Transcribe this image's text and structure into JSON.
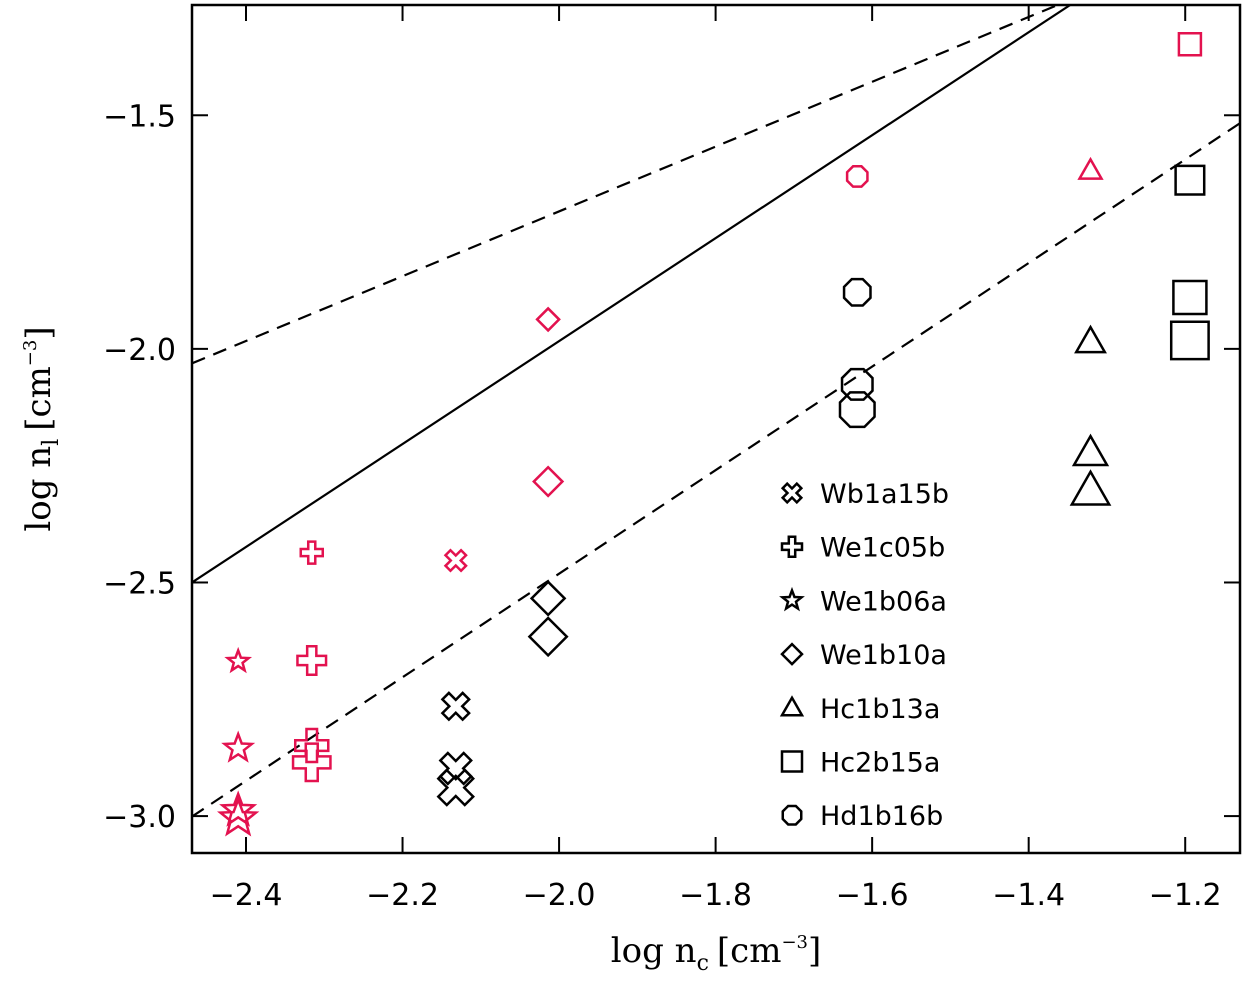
{
  "chart_data": {
    "type": "scatter",
    "x_label": {
      "text": "log n",
      "sub": "c",
      "unit": "[cm",
      "sup": "−3",
      "close": "]"
    },
    "y_label": {
      "text": "log n",
      "sub": "l",
      "unit": "[cm",
      "sup": "−3",
      "close": "]"
    },
    "xlim": [
      -2.469,
      -1.13
    ],
    "ylim": [
      -3.079,
      -1.264
    ],
    "xticks": [
      {
        "value": -2.4,
        "label": "−2.4"
      },
      {
        "value": -2.2,
        "label": "−2.2"
      },
      {
        "value": -2.0,
        "label": "−2.0"
      },
      {
        "value": -1.8,
        "label": "−1.8"
      },
      {
        "value": -1.6,
        "label": "−1.6"
      },
      {
        "value": -1.4,
        "label": "−1.4"
      },
      {
        "value": -1.2,
        "label": "−1.2"
      }
    ],
    "yticks": [
      {
        "value": -1.5,
        "label": "−1.5"
      },
      {
        "value": -2.0,
        "label": "−2.0"
      },
      {
        "value": -2.5,
        "label": "−2.5"
      },
      {
        "value": -3.0,
        "label": "−3.0"
      }
    ],
    "lines": [
      {
        "x": [
          -2.469,
          -1.347
        ],
        "y": [
          -2.5,
          -1.264
        ],
        "dashed": false
      },
      {
        "x": [
          -2.469,
          -1.363
        ],
        "y": [
          -2.031,
          -1.264
        ],
        "dashed": true
      },
      {
        "x": [
          -2.469,
          -1.13
        ],
        "y": [
          -3.001,
          -1.517
        ],
        "dashed": true
      }
    ],
    "series": [
      {
        "name": "Wb1a15b",
        "marker": "cross",
        "x": [
          -2.132,
          -2.132,
          -2.132,
          -2.132
        ],
        "y": [
          -2.453,
          -2.765,
          -2.898,
          -2.939
        ],
        "sizes": [
          1.0,
          1.3,
          1.5,
          1.7
        ],
        "colors": [
          "#e3124f",
          "#000000",
          "#000000",
          "#000000"
        ]
      },
      {
        "name": "We1c05b",
        "marker": "plus",
        "x": [
          -2.316,
          -2.316,
          -2.316,
          -2.316
        ],
        "y": [
          -2.436,
          -2.667,
          -2.849,
          -2.885
        ],
        "sizes": [
          1.0,
          1.3,
          1.5,
          1.7
        ],
        "colors": [
          "#e3124f",
          "#e3124f",
          "#e3124f",
          "#e3124f"
        ]
      },
      {
        "name": "We1b06a",
        "marker": "star",
        "x": [
          -2.41,
          -2.41,
          -2.41,
          -2.41
        ],
        "y": [
          -2.669,
          -2.855,
          -2.988,
          -3.005
        ],
        "sizes": [
          1.0,
          1.3,
          1.5,
          1.7
        ],
        "colors": [
          "#e3124f",
          "#e3124f",
          "#e3124f",
          "#e3124f"
        ]
      },
      {
        "name": "We1b10a",
        "marker": "diamond",
        "x": [
          -2.014,
          -2.014,
          -2.014,
          -2.014
        ],
        "y": [
          -1.937,
          -2.284,
          -2.534,
          -2.616
        ],
        "sizes": [
          1.0,
          1.3,
          1.5,
          1.7
        ],
        "colors": [
          "#e3124f",
          "#e3124f",
          "#000000",
          "#000000"
        ]
      },
      {
        "name": "Hc1b13a",
        "marker": "triangle",
        "x": [
          -1.321,
          -1.321,
          -1.321,
          -1.321
        ],
        "y": [
          -1.618,
          -1.984,
          -2.222,
          -2.303
        ],
        "sizes": [
          1.0,
          1.3,
          1.5,
          1.7
        ],
        "colors": [
          "#e3124f",
          "#000000",
          "#000000",
          "#000000"
        ]
      },
      {
        "name": "Hc2b15a",
        "marker": "square",
        "x": [
          -1.194,
          -1.194,
          -1.194,
          -1.194
        ],
        "y": [
          -1.348,
          -1.639,
          -1.89,
          -1.982
        ],
        "sizes": [
          1.0,
          1.3,
          1.5,
          1.7
        ],
        "colors": [
          "#e3124f",
          "#000000",
          "#000000",
          "#000000"
        ]
      },
      {
        "name": "Hd1b16b",
        "marker": "octagon",
        "x": [
          -1.619,
          -1.619,
          -1.619,
          -1.619
        ],
        "y": [
          -1.631,
          -1.879,
          -2.076,
          -2.13
        ],
        "sizes": [
          1.0,
          1.3,
          1.5,
          1.7
        ],
        "colors": [
          "#e3124f",
          "#000000",
          "#000000",
          "#000000"
        ]
      }
    ]
  }
}
